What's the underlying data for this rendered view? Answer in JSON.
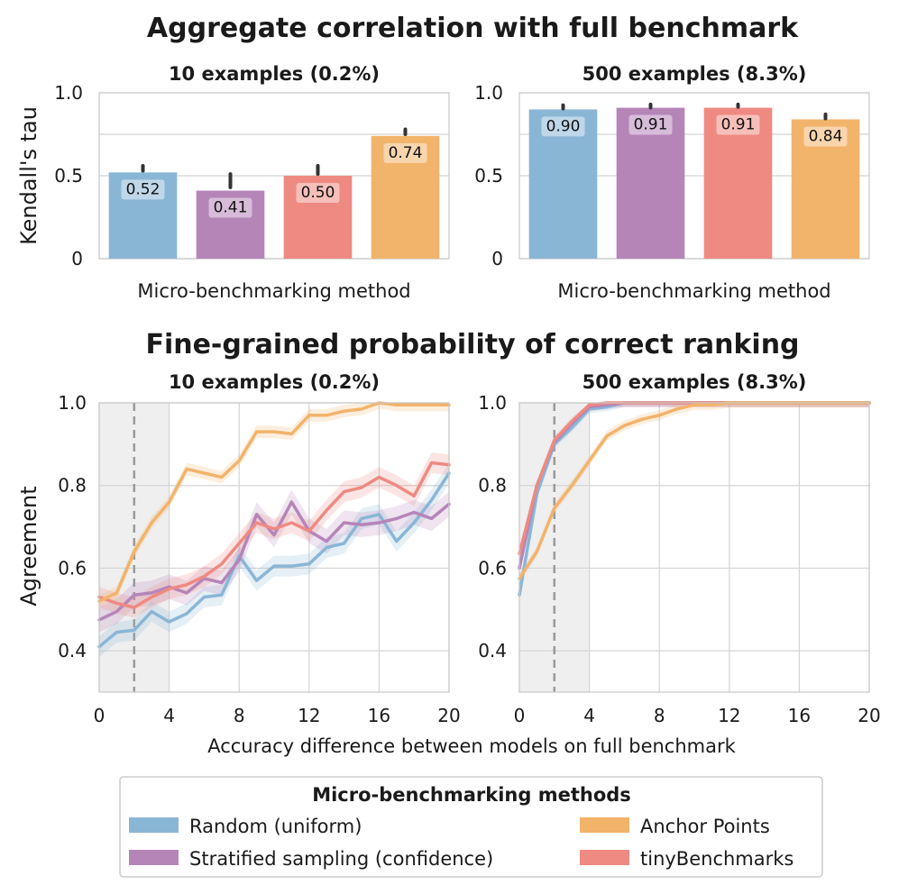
{
  "figure": {
    "top_title": "Aggregate correlation with full benchmark",
    "bottom_title": "Fine-grained probability of correct ranking",
    "top_ylabel": "Kendall's tau",
    "top_xlabel": "Micro-benchmarking method",
    "bottom_ylabel": "Agreement",
    "bottom_xlabel": "Accuracy difference between models on full benchmark"
  },
  "colors": {
    "random": "#8AB6D6",
    "stratified": "#B585B8",
    "tinybench": "#EE8A82",
    "anchor": "#F2B36B",
    "dashed": "#9a9a9a",
    "shade": "#efefef",
    "grid": "#d4d4d4",
    "frame": "#c8c8c8",
    "errbar": "#333333"
  },
  "legend": {
    "title": "Micro-benchmarking methods",
    "items": [
      {
        "key": "random",
        "label": "Random (uniform)"
      },
      {
        "key": "anchor",
        "label": "Anchor Points"
      },
      {
        "key": "stratified",
        "label": "Stratified sampling (confidence)"
      },
      {
        "key": "tinybench",
        "label": "tinyBenchmarks"
      }
    ]
  },
  "chart_data": [
    {
      "type": "bar",
      "title": "10 examples (0.2%)",
      "xlabel": "Micro-benchmarking method",
      "ylabel": "Kendall's tau",
      "ylim": [
        0,
        1.0
      ],
      "yticks": [
        "0",
        "0.5",
        "1.0"
      ],
      "categories": [
        "Random (uniform)",
        "Stratified sampling (confidence)",
        "tinyBenchmarks",
        "Anchor Points"
      ],
      "values": [
        0.52,
        0.41,
        0.5,
        0.74
      ],
      "labels": [
        "0.52",
        "0.41",
        "0.50",
        "0.74"
      ],
      "errors": [
        [
          0.53,
          0.56
        ],
        [
          0.43,
          0.51
        ],
        [
          0.51,
          0.56
        ],
        [
          0.75,
          0.78
        ]
      ],
      "colors": [
        "random",
        "stratified",
        "tinybench",
        "anchor"
      ],
      "grid": true
    },
    {
      "type": "bar",
      "title": "500 examples (8.3%)",
      "xlabel": "Micro-benchmarking method",
      "ylabel": "",
      "ylim": [
        0,
        1.0
      ],
      "yticks": [
        "0",
        "0.5",
        "1.0"
      ],
      "categories": [
        "Random (uniform)",
        "Stratified sampling (confidence)",
        "tinyBenchmarks",
        "Anchor Points"
      ],
      "values": [
        0.9,
        0.91,
        0.91,
        0.84
      ],
      "labels": [
        "0.90",
        "0.91",
        "0.91",
        "0.84"
      ],
      "errors": [
        [
          0.905,
          0.925
        ],
        [
          0.91,
          0.93
        ],
        [
          0.915,
          0.93
        ],
        [
          0.845,
          0.87
        ]
      ],
      "colors": [
        "random",
        "stratified",
        "tinybench",
        "anchor"
      ],
      "grid": true
    },
    {
      "type": "line",
      "title": "10 examples (0.2%)",
      "xlabel": "Accuracy difference between models on full benchmark",
      "ylabel": "Agreement",
      "xlim": [
        0,
        20
      ],
      "ylim": [
        0.3,
        1.0
      ],
      "xticks": [
        "0",
        "4",
        "8",
        "12",
        "16",
        "20"
      ],
      "yticks": [
        "0.4",
        "0.6",
        "0.8",
        "1.0"
      ],
      "shaded_region": [
        0,
        4
      ],
      "dashed_line_x": 2,
      "grid": true,
      "x": [
        0,
        1,
        2,
        3,
        4,
        5,
        6,
        7,
        8,
        9,
        10,
        11,
        12,
        13,
        14,
        15,
        16,
        17,
        18,
        19,
        20
      ],
      "series": [
        {
          "key": "random",
          "name": "Random (uniform)",
          "band": 0.025,
          "values": [
            0.41,
            0.445,
            0.45,
            0.495,
            0.47,
            0.49,
            0.53,
            0.535,
            0.63,
            0.57,
            0.605,
            0.605,
            0.61,
            0.65,
            0.66,
            0.72,
            0.73,
            0.665,
            0.71,
            0.765,
            0.83
          ]
        },
        {
          "key": "stratified",
          "name": "Stratified sampling (confidence)",
          "band": 0.03,
          "values": [
            0.475,
            0.495,
            0.535,
            0.54,
            0.555,
            0.54,
            0.575,
            0.565,
            0.62,
            0.73,
            0.68,
            0.76,
            0.69,
            0.665,
            0.71,
            0.705,
            0.71,
            0.72,
            0.735,
            0.72,
            0.755
          ]
        },
        {
          "key": "tinybench",
          "name": "tinyBenchmarks",
          "band": 0.025,
          "values": [
            0.53,
            0.515,
            0.505,
            0.53,
            0.55,
            0.56,
            0.58,
            0.61,
            0.66,
            0.71,
            0.695,
            0.71,
            0.69,
            0.74,
            0.785,
            0.795,
            0.82,
            0.8,
            0.775,
            0.855,
            0.85
          ]
        },
        {
          "key": "anchor",
          "name": "Anchor Points",
          "band": 0.015,
          "values": [
            0.52,
            0.54,
            0.64,
            0.71,
            0.76,
            0.84,
            0.83,
            0.82,
            0.86,
            0.93,
            0.93,
            0.925,
            0.97,
            0.97,
            0.98,
            0.985,
            1.0,
            0.995,
            0.995,
            0.995,
            0.995
          ]
        }
      ]
    },
    {
      "type": "line",
      "title": "500 examples (8.3%)",
      "xlabel": "",
      "ylabel": "",
      "xlim": [
        0,
        20
      ],
      "ylim": [
        0.3,
        1.0
      ],
      "xticks": [
        "0",
        "4",
        "8",
        "12",
        "16",
        "20"
      ],
      "yticks": [
        "0.4",
        "0.6",
        "0.8",
        "1.0"
      ],
      "shaded_region": [
        0,
        4
      ],
      "dashed_line_x": 2,
      "grid": true,
      "x": [
        0,
        1,
        2,
        3,
        4,
        5,
        6,
        7,
        8,
        9,
        10,
        11,
        12,
        13,
        14,
        15,
        16,
        17,
        18,
        19,
        20
      ],
      "series": [
        {
          "key": "random",
          "name": "Random (uniform)",
          "band": 0.01,
          "values": [
            0.535,
            0.78,
            0.9,
            0.94,
            0.985,
            0.99,
            1.0,
            1.0,
            1.0,
            1.0,
            1.0,
            1.0,
            1.0,
            1.0,
            1.0,
            1.0,
            1.0,
            1.0,
            1.0,
            1.0,
            1.0
          ]
        },
        {
          "key": "stratified",
          "name": "Stratified sampling (confidence)",
          "band": 0.01,
          "values": [
            0.6,
            0.8,
            0.905,
            0.95,
            0.99,
            0.995,
            1.0,
            1.0,
            1.0,
            1.0,
            1.0,
            1.0,
            1.0,
            1.0,
            1.0,
            1.0,
            1.0,
            1.0,
            1.0,
            1.0,
            1.0
          ]
        },
        {
          "key": "tinybench",
          "name": "tinyBenchmarks",
          "band": 0.01,
          "values": [
            0.635,
            0.8,
            0.91,
            0.955,
            0.995,
            1.0,
            1.0,
            1.0,
            1.0,
            1.0,
            1.0,
            1.0,
            1.0,
            1.0,
            1.0,
            1.0,
            1.0,
            1.0,
            1.0,
            1.0,
            1.0
          ]
        },
        {
          "key": "anchor",
          "name": "Anchor Points",
          "band": 0.012,
          "values": [
            0.575,
            0.64,
            0.745,
            0.8,
            0.86,
            0.92,
            0.945,
            0.96,
            0.97,
            0.985,
            0.995,
            0.995,
            1.0,
            1.0,
            1.0,
            1.0,
            1.0,
            1.0,
            1.0,
            1.0,
            1.0
          ]
        }
      ]
    }
  ]
}
